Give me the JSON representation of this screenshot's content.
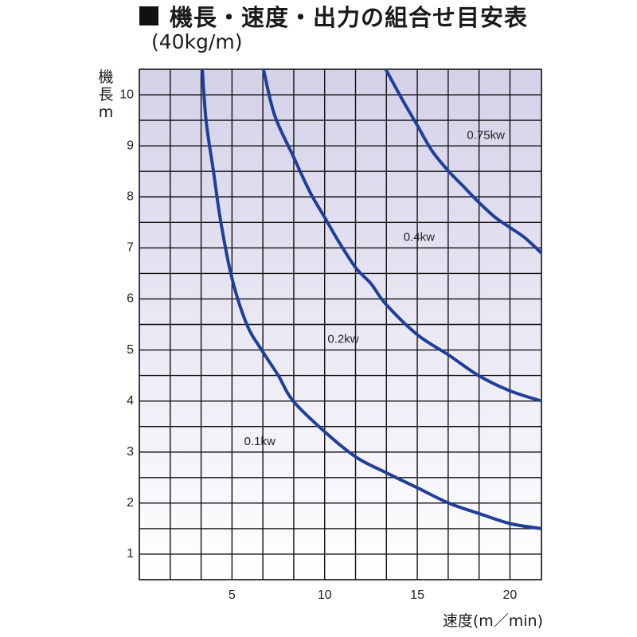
{
  "title": "機長・速度・出力の組合せ目安表",
  "subtitle": "(40kg/m)",
  "ylabel_lines": [
    "機",
    "長",
    "m"
  ],
  "xlabel": "速度(m／min)",
  "colors": {
    "curve": "#1f3f9a",
    "grid": "#111111",
    "background_top": "#d4d1e8",
    "background_bottom": "#ffffff"
  },
  "chart_data": {
    "type": "line",
    "title": "機長・速度・出力の組合せ目安表",
    "subtitle": "(40kg/m)",
    "xlabel": "速度(m／min)",
    "ylabel": "機長 m",
    "xlim": [
      0,
      21.7
    ],
    "ylim": [
      0.5,
      10.5
    ],
    "xticks": [
      5,
      10,
      15,
      20
    ],
    "yticks": [
      1,
      2,
      3,
      4,
      5,
      6,
      7,
      8,
      9,
      10
    ],
    "grid": true,
    "series": [
      {
        "name": "0.1kw",
        "points": [
          [
            3.4,
            10.5
          ],
          [
            3.6,
            9.5
          ],
          [
            4.0,
            8.5
          ],
          [
            4.4,
            7.5
          ],
          [
            5.0,
            6.4
          ],
          [
            5.8,
            5.5
          ],
          [
            6.6,
            5.0
          ],
          [
            7.5,
            4.5
          ],
          [
            8.3,
            4.0
          ],
          [
            10.0,
            3.4
          ],
          [
            11.7,
            2.9
          ],
          [
            13.3,
            2.6
          ],
          [
            15.0,
            2.3
          ],
          [
            16.7,
            2.0
          ],
          [
            18.3,
            1.8
          ],
          [
            20.0,
            1.6
          ],
          [
            21.7,
            1.5
          ]
        ]
      },
      {
        "name": "0.2kw",
        "points": [
          [
            6.7,
            10.5
          ],
          [
            7.3,
            9.6
          ],
          [
            8.3,
            8.8
          ],
          [
            9.2,
            8.1
          ],
          [
            10.0,
            7.6
          ],
          [
            10.8,
            7.1
          ],
          [
            11.7,
            6.6
          ],
          [
            12.5,
            6.3
          ],
          [
            13.3,
            5.9
          ],
          [
            15.0,
            5.3
          ],
          [
            16.7,
            4.9
          ],
          [
            18.3,
            4.5
          ],
          [
            20.0,
            4.2
          ],
          [
            21.7,
            4.0
          ]
        ]
      },
      {
        "name": "0.4kw",
        "points": [
          [
            13.3,
            10.5
          ],
          [
            14.2,
            9.9
          ],
          [
            15.0,
            9.4
          ],
          [
            15.8,
            8.9
          ],
          [
            16.7,
            8.5
          ],
          [
            17.5,
            8.2
          ],
          [
            18.3,
            7.9
          ],
          [
            19.2,
            7.6
          ],
          [
            20.0,
            7.4
          ],
          [
            20.8,
            7.2
          ],
          [
            21.7,
            6.9
          ]
        ]
      }
    ],
    "annotations": [
      {
        "text": "0.75kw",
        "x": 18.7,
        "y": 9.2
      },
      {
        "text": "0.4kw",
        "x": 15.1,
        "y": 7.2
      },
      {
        "text": "0.2kw",
        "x": 11.0,
        "y": 5.2
      },
      {
        "text": "0.1kw",
        "x": 6.5,
        "y": 3.2
      }
    ]
  }
}
